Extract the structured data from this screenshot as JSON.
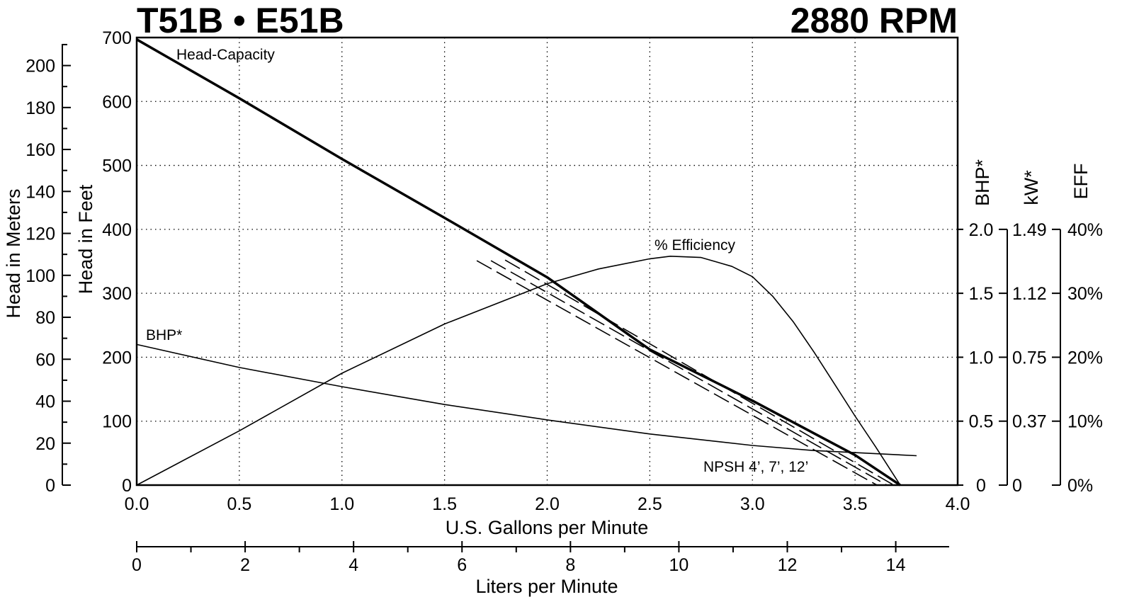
{
  "chart_data": {
    "type": "line",
    "title": "T51B • E51B",
    "subtitle": "2880 RPM",
    "xlabel": "U.S. Gallons per Minute",
    "xlim": [
      0,
      4.0
    ],
    "xticks": [
      {
        "value": 0,
        "label": "0.0"
      },
      0.5,
      {
        "value": 1,
        "label": "1.0"
      },
      1.5,
      {
        "value": 2,
        "label": "2.0"
      },
      2.5,
      {
        "value": 3,
        "label": "3.0"
      },
      3.5,
      {
        "value": 4,
        "label": "4.0"
      }
    ],
    "x2label": "Liters per Minute",
    "x2lim": [
      0,
      15.142
    ],
    "x2ticks": [
      0,
      2,
      4,
      6,
      8,
      10,
      12,
      14
    ],
    "x2minor_ticks": [
      1,
      3,
      5,
      7,
      9,
      11,
      13
    ],
    "ylabel": "Head in Feet",
    "ylim": [
      0,
      700
    ],
    "yticks": [
      0,
      100,
      200,
      300,
      400,
      500,
      600,
      700
    ],
    "y2label": "Head in Meters",
    "y2lim": [
      0,
      213.36
    ],
    "y2ticks": [
      0,
      20,
      40,
      60,
      80,
      100,
      120,
      140,
      160,
      180,
      200
    ],
    "y2minor_ticks": [
      10,
      30,
      50,
      70,
      90,
      110,
      130,
      150,
      170,
      190,
      210
    ],
    "bhp_label": "BHP*",
    "bhp_lim": [
      0,
      2.0
    ],
    "bhp_ticks": [
      0,
      0.5,
      1.0,
      1.5,
      2.0
    ],
    "bhp_tick_labels": [
      "0",
      "0.5",
      "1.0",
      "1.5",
      "2.0"
    ],
    "kw_label": "kW*",
    "kw_lim": [
      0,
      1.4914
    ],
    "kw_ticks": [
      0,
      {
        "value": 0.3729,
        "label": "0.37"
      },
      {
        "value": 0.7457,
        "label": "0.75"
      },
      {
        "value": 1.1186,
        "label": "1.12"
      },
      {
        "value": 1.4914,
        "label": "1.49"
      }
    ],
    "eff_label": "EFF",
    "eff_lim": [
      0,
      40
    ],
    "eff_ticks": [
      {
        "value": 0,
        "label": "0%"
      },
      {
        "value": 10,
        "label": "10%"
      },
      {
        "value": 20,
        "label": "20%"
      },
      {
        "value": 30,
        "label": "30%"
      },
      {
        "value": 40,
        "label": "40%"
      }
    ],
    "grid": true,
    "annotations": [
      "Head-Capacity",
      "% Efficiency",
      "BHP*",
      "NPSH 4’, 7’, 12’"
    ],
    "series": [
      {
        "axis": "y",
        "color": "#000000",
        "width": 3.5,
        "x": [
          0,
          0.5,
          1.0,
          1.5,
          2.0,
          2.5,
          3.0,
          3.5,
          3.72
        ],
        "values": [
          697,
          605,
          510,
          418,
          325,
          212,
          132,
          47,
          0
        ]
      },
      {
        "axis": "eff",
        "color": "#000000",
        "width": 1.6,
        "x": [
          0,
          0.5,
          1.0,
          1.5,
          2.0,
          2.25,
          2.5,
          2.6,
          2.75,
          2.9,
          3.0,
          3.1,
          3.2,
          3.3,
          3.4,
          3.5,
          3.6,
          3.72
        ],
        "values": [
          0,
          8.5,
          17.5,
          25.2,
          31.5,
          33.8,
          35.4,
          35.8,
          35.6,
          34.2,
          32.6,
          29.5,
          25.5,
          20.8,
          15.8,
          10.8,
          6,
          0
        ]
      },
      {
        "axis": "bhp",
        "color": "#000000",
        "width": 1.6,
        "x": [
          0,
          0.5,
          1.0,
          1.5,
          2.0,
          2.5,
          3.0,
          3.3,
          3.8
        ],
        "values": [
          1.1,
          0.92,
          0.77,
          0.63,
          0.51,
          0.4,
          0.31,
          0.27,
          0.23
        ]
      },
      {
        "axis": "y",
        "color": "#000000",
        "width": 1.6,
        "dashed": true,
        "x": [
          1.657,
          3.607
        ],
        "values": [
          351,
          0
        ]
      },
      {
        "axis": "y",
        "color": "#000000",
        "width": 1.6,
        "dashed": true,
        "x": [
          1.726,
          3.655
        ],
        "values": [
          351,
          0
        ]
      },
      {
        "axis": "y",
        "color": "#000000",
        "width": 1.6,
        "dashed": true,
        "x": [
          1.795,
          3.689
        ],
        "values": [
          352,
          0
        ]
      }
    ]
  }
}
